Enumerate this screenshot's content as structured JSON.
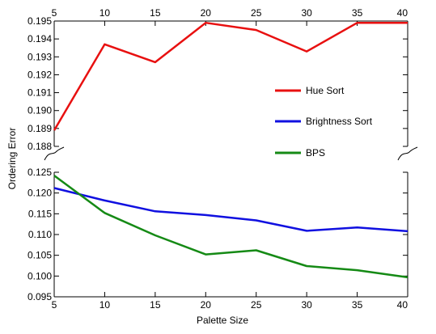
{
  "chart_data": {
    "type": "line",
    "xlabel": "Palette Size",
    "ylabel": "Ordering Error",
    "x": [
      5,
      10,
      15,
      20,
      25,
      30,
      35,
      40
    ],
    "x_ticks": [
      "5",
      "10",
      "15",
      "20",
      "25",
      "30",
      "35",
      "40"
    ],
    "broken_y_axis": true,
    "upper_ylim": [
      0.188,
      0.195
    ],
    "upper_y_ticks": [
      "0.188",
      "0.189",
      "0.190",
      "0.191",
      "0.192",
      "0.193",
      "0.194",
      "0.195"
    ],
    "lower_ylim": [
      0.095,
      0.125
    ],
    "lower_y_ticks": [
      "0.095",
      "0.100",
      "0.105",
      "0.110",
      "0.115",
      "0.120",
      "0.125"
    ],
    "grid": false,
    "legend_position": "upper-right",
    "series": [
      {
        "name": "Hue Sort",
        "color": "#e81010",
        "panel": "upper",
        "values": [
          0.1889,
          0.1937,
          0.1927,
          0.1949,
          0.1945,
          0.1933,
          0.1949,
          0.1949
        ]
      },
      {
        "name": "Brightness Sort",
        "color": "#1010e0",
        "panel": "lower",
        "values": [
          0.1212,
          0.1182,
          0.1156,
          0.1147,
          0.1134,
          0.1109,
          0.1117,
          0.1108
        ]
      },
      {
        "name": "BPS",
        "color": "#158a15",
        "panel": "lower",
        "values": [
          0.1242,
          0.1152,
          0.1098,
          0.1052,
          0.1062,
          0.1024,
          0.1014,
          0.0997
        ]
      }
    ]
  }
}
